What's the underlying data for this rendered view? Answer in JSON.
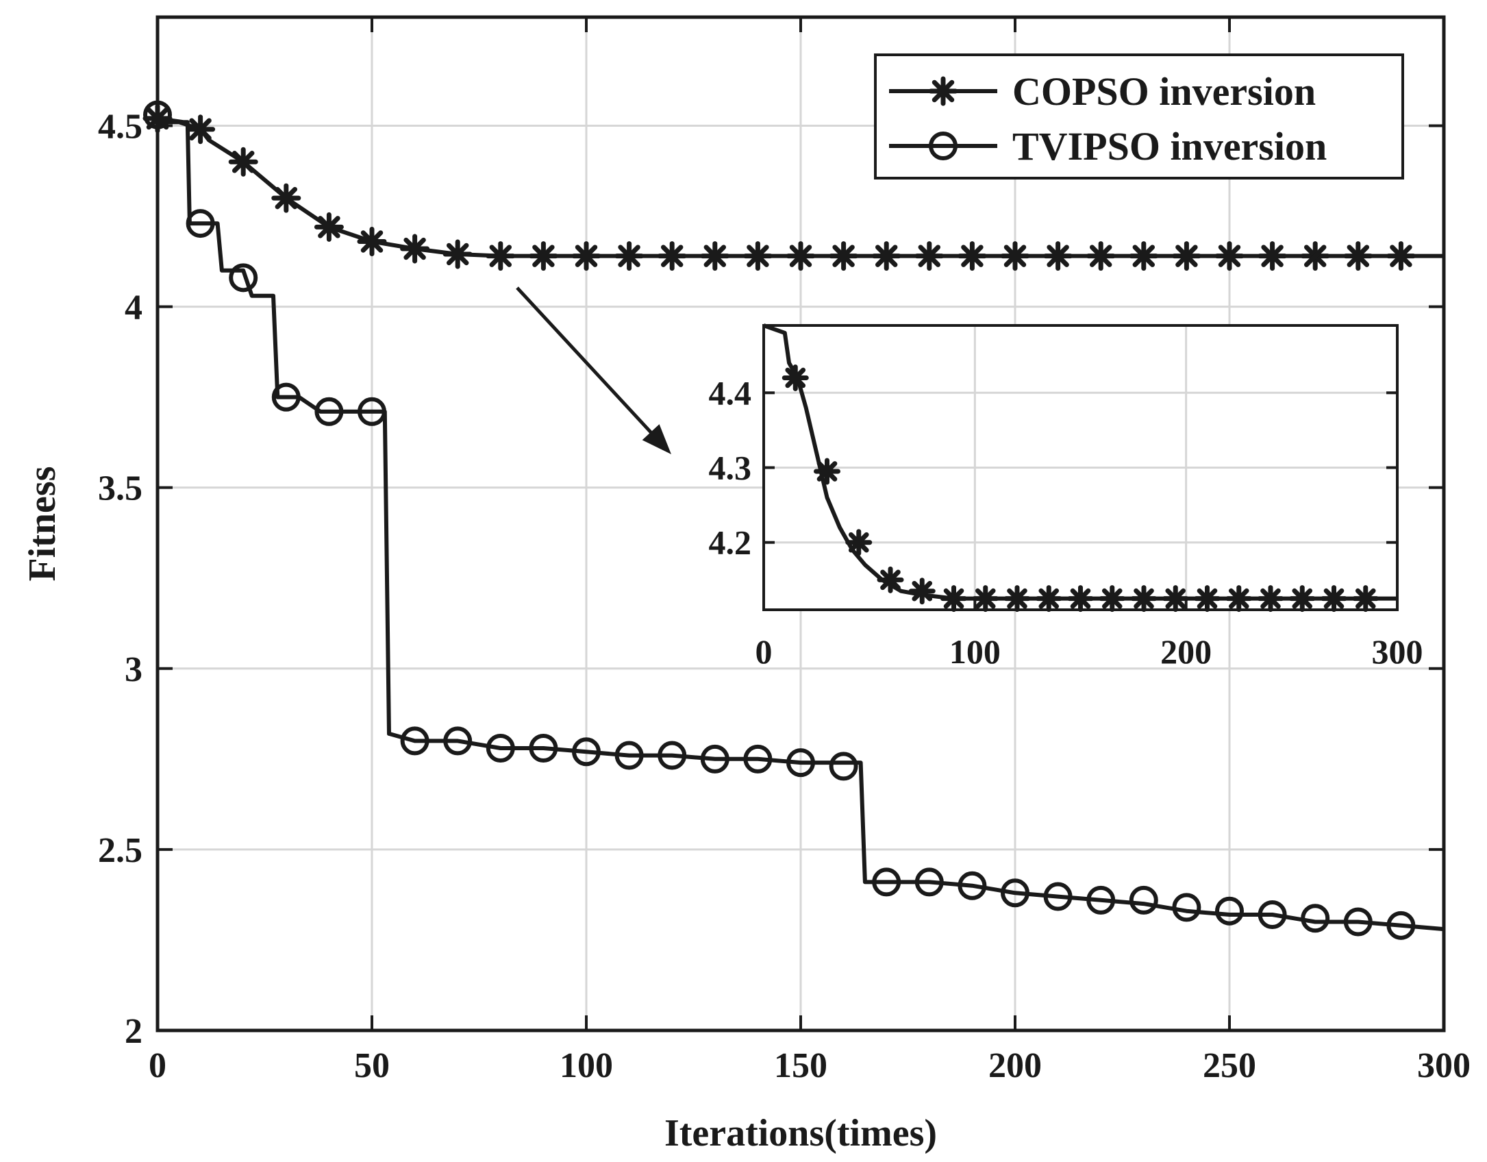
{
  "chart_data": {
    "type": "line",
    "title": "",
    "xlabel": "Iterations(times)",
    "ylabel": "Fitness",
    "xlim": [
      0,
      300
    ],
    "ylim": [
      2,
      4.8
    ],
    "xticks": [
      "0",
      "50",
      "100",
      "150",
      "200",
      "250",
      "300"
    ],
    "yticks": [
      "2",
      "2.5",
      "3",
      "3.5",
      "4",
      "4.5"
    ],
    "grid": true,
    "legend_position": "top-right",
    "series": [
      {
        "name": "COPSO inversion",
        "marker": "asterisk",
        "line": [
          [
            0,
            4.51
          ],
          [
            5,
            4.51
          ],
          [
            10,
            4.49
          ],
          [
            12,
            4.46
          ],
          [
            20,
            4.4
          ],
          [
            30,
            4.3
          ],
          [
            40,
            4.22
          ],
          [
            50,
            4.18
          ],
          [
            60,
            4.16
          ],
          [
            70,
            4.145
          ],
          [
            80,
            4.14
          ],
          [
            300,
            4.14
          ]
        ],
        "markers_x": [
          0,
          10,
          20,
          30,
          40,
          50,
          60,
          70,
          80,
          90,
          100,
          110,
          120,
          130,
          140,
          150,
          160,
          170,
          180,
          190,
          200,
          210,
          220,
          230,
          240,
          250,
          260,
          270,
          280,
          290
        ],
        "markers_y": [
          4.52,
          4.49,
          4.4,
          4.3,
          4.22,
          4.18,
          4.16,
          4.145,
          4.14,
          4.14,
          4.14,
          4.14,
          4.14,
          4.14,
          4.14,
          4.14,
          4.14,
          4.14,
          4.14,
          4.14,
          4.14,
          4.14,
          4.14,
          4.14,
          4.14,
          4.14,
          4.14,
          4.14,
          4.14,
          4.14
        ]
      },
      {
        "name": "TVIPSO inversion",
        "marker": "circle",
        "line": [
          [
            0,
            4.52
          ],
          [
            6,
            4.51
          ],
          [
            7,
            4.51
          ],
          [
            7.5,
            4.23
          ],
          [
            14,
            4.23
          ],
          [
            15,
            4.1
          ],
          [
            20,
            4.1
          ],
          [
            22,
            4.03
          ],
          [
            27,
            4.03
          ],
          [
            28,
            3.75
          ],
          [
            33,
            3.75
          ],
          [
            38,
            3.71
          ],
          [
            53,
            3.71
          ],
          [
            54,
            2.82
          ],
          [
            60,
            2.8
          ],
          [
            70,
            2.8
          ],
          [
            80,
            2.78
          ],
          [
            90,
            2.78
          ],
          [
            100,
            2.77
          ],
          [
            110,
            2.76
          ],
          [
            120,
            2.76
          ],
          [
            130,
            2.75
          ],
          [
            140,
            2.75
          ],
          [
            150,
            2.74
          ],
          [
            160,
            2.74
          ],
          [
            164,
            2.74
          ],
          [
            165,
            2.41
          ],
          [
            170,
            2.41
          ],
          [
            180,
            2.41
          ],
          [
            190,
            2.4
          ],
          [
            200,
            2.38
          ],
          [
            210,
            2.37
          ],
          [
            220,
            2.36
          ],
          [
            230,
            2.35
          ],
          [
            240,
            2.33
          ],
          [
            250,
            2.32
          ],
          [
            260,
            2.32
          ],
          [
            270,
            2.3
          ],
          [
            280,
            2.3
          ],
          [
            290,
            2.29
          ],
          [
            300,
            2.28
          ]
        ],
        "markers_x": [
          0,
          10,
          20,
          30,
          40,
          50,
          60,
          70,
          80,
          90,
          100,
          110,
          120,
          130,
          140,
          150,
          160,
          170,
          180,
          190,
          200,
          210,
          220,
          230,
          240,
          250,
          260,
          270,
          280,
          290
        ],
        "markers_y": [
          4.53,
          4.23,
          4.08,
          3.75,
          3.71,
          3.71,
          2.8,
          2.8,
          2.78,
          2.78,
          2.77,
          2.76,
          2.76,
          2.75,
          2.75,
          2.74,
          2.73,
          2.41,
          2.41,
          2.4,
          2.38,
          2.37,
          2.36,
          2.36,
          2.34,
          2.33,
          2.32,
          2.31,
          2.3,
          2.29
        ]
      }
    ],
    "inset": {
      "type": "line",
      "xlim": [
        0,
        300
      ],
      "ylim": [
        4.11,
        4.49
      ],
      "xticks": [
        "0",
        "100",
        "200",
        "300"
      ],
      "yticks": [
        "4.2",
        "4.3",
        "4.4"
      ],
      "grid": true,
      "series_name": "COPSO inversion",
      "line": [
        [
          0,
          4.49
        ],
        [
          10,
          4.48
        ],
        [
          12,
          4.44
        ],
        [
          16,
          4.42
        ],
        [
          20,
          4.38
        ],
        [
          25,
          4.32
        ],
        [
          30,
          4.26
        ],
        [
          36,
          4.22
        ],
        [
          42,
          4.19
        ],
        [
          48,
          4.17
        ],
        [
          56,
          4.15
        ],
        [
          65,
          4.135
        ],
        [
          75,
          4.13
        ],
        [
          90,
          4.125
        ],
        [
          300,
          4.125
        ]
      ],
      "markers_x": [
        15,
        30,
        45,
        60,
        75,
        90,
        105,
        120,
        135,
        150,
        165,
        180,
        195,
        210,
        225,
        240,
        255,
        270,
        285
      ],
      "markers_y": [
        4.42,
        4.295,
        4.2,
        4.15,
        4.135,
        4.125,
        4.125,
        4.125,
        4.125,
        4.125,
        4.125,
        4.125,
        4.125,
        4.125,
        4.125,
        4.125,
        4.125,
        4.125,
        4.125
      ]
    }
  }
}
